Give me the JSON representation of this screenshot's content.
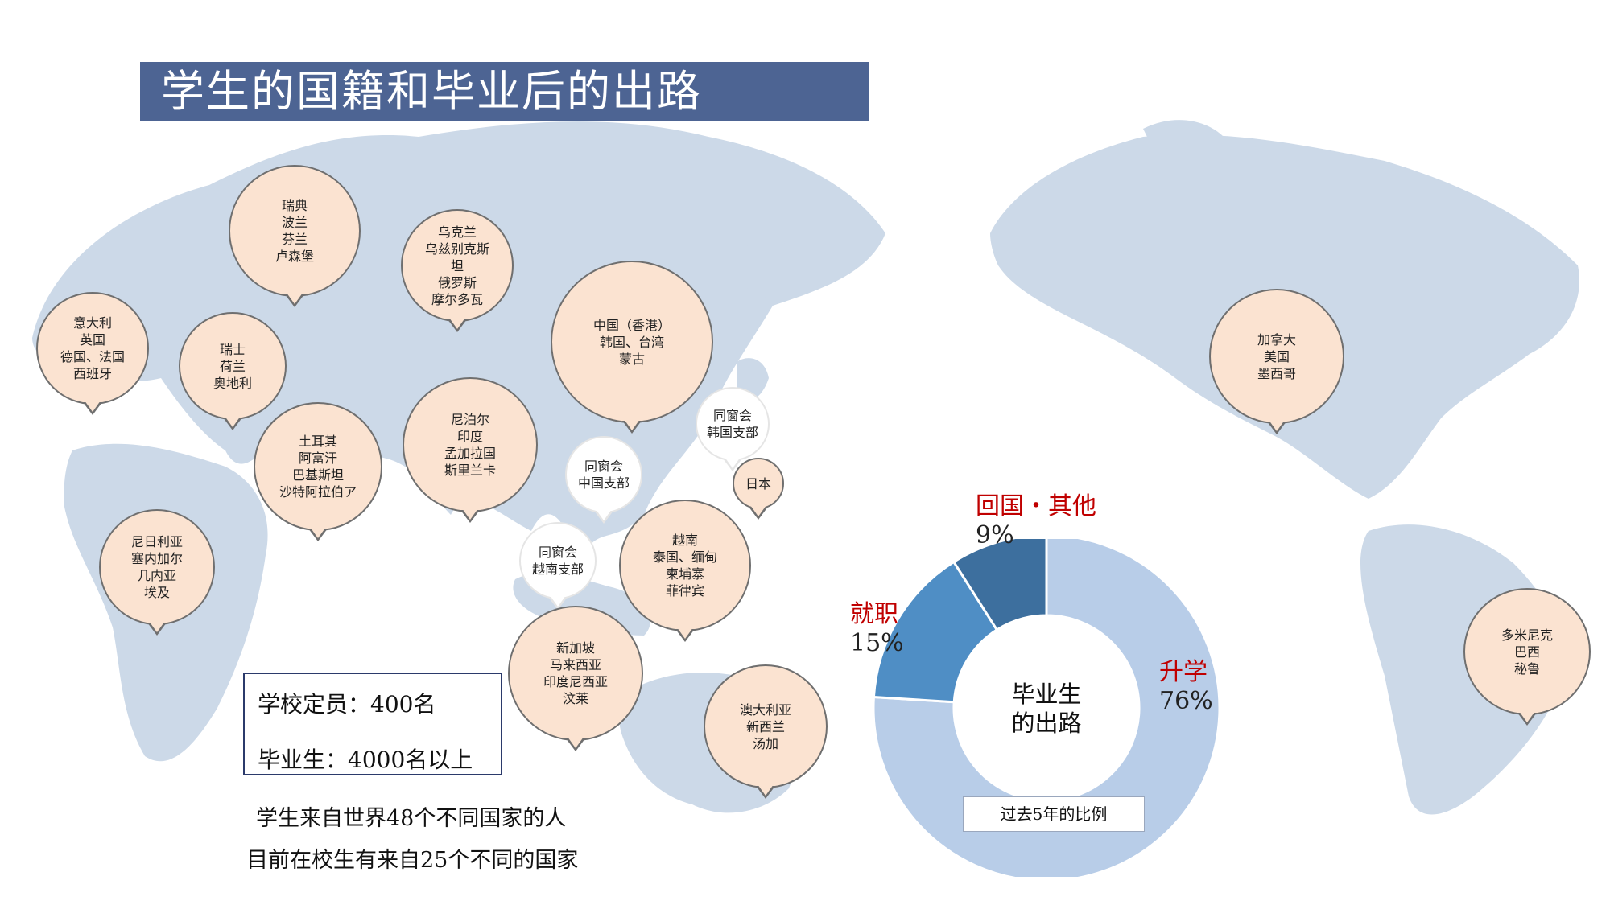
{
  "title": "学生的国籍和毕业后的出路",
  "colors": {
    "title_bg": "#4d6493",
    "map": "#ccd9e8",
    "bubble": "#fbe3d1",
    "category_label": "#c00000"
  },
  "bubbles": [
    {
      "id": "scandinavia",
      "lines": [
        "瑞典",
        "波兰",
        "芬兰",
        "卢森堡"
      ]
    },
    {
      "id": "west-europe",
      "lines": [
        "意大利",
        "英国",
        "德国、法国",
        "西班牙"
      ]
    },
    {
      "id": "central-europe",
      "lines": [
        "瑞士",
        "荷兰",
        "奥地利"
      ]
    },
    {
      "id": "east-europe",
      "lines": [
        "乌克兰",
        "乌兹别克斯",
        "坦",
        "俄罗斯",
        "摩尔多瓦"
      ]
    },
    {
      "id": "middle-east",
      "lines": [
        "土耳其",
        "阿富汗",
        "巴基斯坦",
        "沙特阿拉伯ア"
      ]
    },
    {
      "id": "south-asia",
      "lines": [
        "尼泊尔",
        "印度",
        "孟加拉国",
        "斯里兰卡"
      ]
    },
    {
      "id": "east-asia",
      "lines": [
        "中国（香港）",
        "韩国、台湾",
        "蒙古"
      ]
    },
    {
      "id": "alumni-korea",
      "white": true,
      "lines": [
        "同窗会",
        "韩国支部"
      ]
    },
    {
      "id": "alumni-china",
      "white": true,
      "lines": [
        "同窗会",
        "中国支部"
      ]
    },
    {
      "id": "japan",
      "lines": [
        "日本"
      ]
    },
    {
      "id": "alumni-vietnam",
      "white": true,
      "lines": [
        "同窗会",
        "越南支部"
      ]
    },
    {
      "id": "southeast-asia",
      "lines": [
        "越南",
        "泰国、缅甸",
        "柬埔寨",
        "菲律宾"
      ]
    },
    {
      "id": "africa",
      "lines": [
        "尼日利亚",
        "塞内加尔",
        "几内亚",
        "埃及"
      ]
    },
    {
      "id": "maritime-asia",
      "lines": [
        "新加坡",
        "马来西亚",
        "印度尼西亚",
        "汶莱"
      ]
    },
    {
      "id": "oceania",
      "lines": [
        "澳大利亚",
        "新西兰",
        "汤加"
      ]
    },
    {
      "id": "north-america",
      "lines": [
        "加拿大",
        "美国",
        "墨西哥"
      ]
    },
    {
      "id": "south-america",
      "lines": [
        "多米尼克",
        "巴西",
        "秘鲁"
      ]
    }
  ],
  "info_box": {
    "capacity": "学校定员：400名",
    "graduates": "毕业生：4000名以上"
  },
  "notes": {
    "countries_total": "学生来自世界48个不同国家的人",
    "countries_current": "目前在校生有来自25个不同的国家"
  },
  "chart_data": {
    "type": "pie",
    "subtype": "donut",
    "center_label_lines": [
      "毕业生",
      "的出路"
    ],
    "period_note": "过去5年的比例",
    "slices": [
      {
        "label": "升学",
        "value": 76,
        "value_label": "76%",
        "color": "#b8cde8"
      },
      {
        "label": "就职",
        "value": 15,
        "value_label": "15%",
        "color": "#4f8ec5"
      },
      {
        "label": "回国・其他",
        "value": 9,
        "value_label": "9%",
        "color": "#3d6f9e"
      }
    ]
  }
}
